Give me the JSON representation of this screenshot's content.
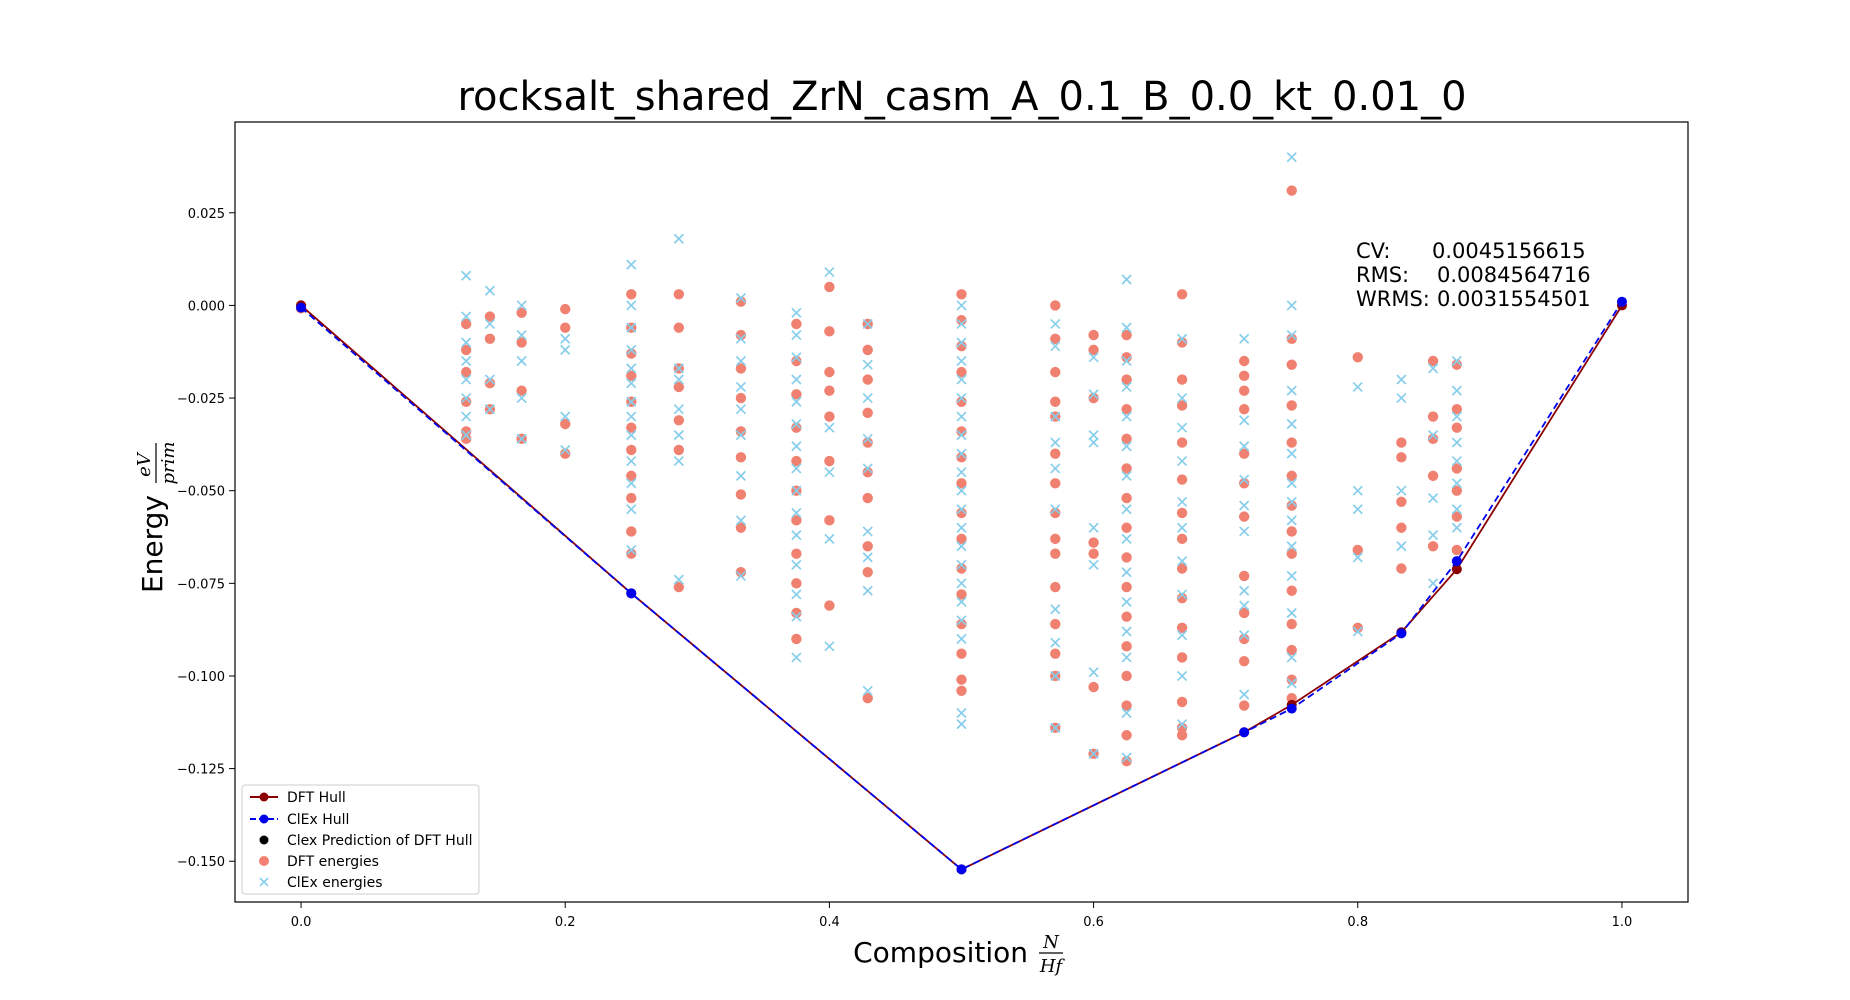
{
  "chart_data": {
    "type": "scatter",
    "title": "rocksalt_shared_ZrN_casm_A_0.1_B_0.0_kt_0.01_0",
    "xlabel": "Composition",
    "xlabel_fraction": {
      "num": "N",
      "den": "Hf"
    },
    "ylabel": "Energy",
    "ylabel_fraction": {
      "num": "eV",
      "den": "prim"
    },
    "xlim": [
      -0.05,
      1.05
    ],
    "ylim": [
      -0.161,
      0.0495
    ],
    "x_ticks": [
      0.0,
      0.2,
      0.4,
      0.6,
      0.8,
      1.0
    ],
    "x_tick_labels": [
      "0.0",
      "0.2",
      "0.4",
      "0.6",
      "0.8",
      "1.0"
    ],
    "y_ticks": [
      0.025,
      0.0,
      -0.025,
      -0.05,
      -0.075,
      -0.1,
      -0.125,
      -0.15
    ],
    "y_tick_labels": [
      "0.025",
      "0.000",
      "−0.025",
      "−0.050",
      "−0.075",
      "−0.100",
      "−0.125",
      "−0.150"
    ],
    "grid": false,
    "legend_position": "lower-left",
    "stats": [
      {
        "label": "CV:",
        "value": "0.0045156615"
      },
      {
        "label": "RMS:",
        "value": "0.0084564716"
      },
      {
        "label": "WRMS:",
        "value": "0.0031554501"
      }
    ],
    "series": [
      {
        "name": "DFT Hull",
        "kind": "line",
        "color": "#8b0000",
        "marker": "circle",
        "dash": false,
        "x": [
          0.0,
          0.25,
          0.5,
          0.714,
          0.75,
          0.833,
          0.875,
          1.0
        ],
        "y": [
          0.0,
          -0.0777,
          -0.1522,
          -0.1152,
          -0.1078,
          -0.0882,
          -0.0712,
          0.0
        ]
      },
      {
        "name": "ClEx Hull",
        "kind": "line",
        "color": "#0000ee",
        "marker": "circle",
        "dash": true,
        "x": [
          0.0,
          0.25,
          0.5,
          0.714,
          0.75,
          0.833,
          0.875,
          1.0
        ],
        "y": [
          -0.0006,
          -0.0777,
          -0.1522,
          -0.1152,
          -0.1088,
          -0.0885,
          -0.069,
          0.001
        ]
      },
      {
        "name": "Clex Prediction of DFT Hull",
        "kind": "scatter",
        "color": "#000000",
        "marker": "circle",
        "x": [],
        "y": []
      },
      {
        "name": "DFT energies",
        "kind": "scatter",
        "color": "#f08070",
        "marker": "circle",
        "columns": [
          {
            "x": 0.0,
            "y": [
              0.0,
              -0.0008
            ]
          },
          {
            "x": 0.125,
            "y": [
              -0.005,
              -0.012,
              -0.018,
              -0.026,
              -0.034,
              -0.036
            ]
          },
          {
            "x": 0.143,
            "y": [
              -0.003,
              -0.009,
              -0.021,
              -0.028
            ]
          },
          {
            "x": 0.167,
            "y": [
              -0.002,
              -0.01,
              -0.023,
              -0.036
            ]
          },
          {
            "x": 0.2,
            "y": [
              -0.001,
              -0.006,
              -0.032,
              -0.04
            ]
          },
          {
            "x": 0.25,
            "y": [
              0.003,
              -0.006,
              -0.013,
              -0.019,
              -0.026,
              -0.033,
              -0.039,
              -0.046,
              -0.052,
              -0.061,
              -0.067
            ]
          },
          {
            "x": 0.286,
            "y": [
              0.003,
              -0.006,
              -0.017,
              -0.022,
              -0.031,
              -0.039,
              -0.076
            ]
          },
          {
            "x": 0.333,
            "y": [
              0.001,
              -0.008,
              -0.017,
              -0.025,
              -0.034,
              -0.041,
              -0.051,
              -0.06,
              -0.072
            ]
          },
          {
            "x": 0.375,
            "y": [
              -0.005,
              -0.015,
              -0.024,
              -0.033,
              -0.042,
              -0.05,
              -0.058,
              -0.067,
              -0.075,
              -0.083,
              -0.09
            ]
          },
          {
            "x": 0.4,
            "y": [
              0.005,
              -0.007,
              -0.018,
              -0.023,
              -0.03,
              -0.042,
              -0.058,
              -0.081
            ]
          },
          {
            "x": 0.429,
            "y": [
              -0.005,
              -0.012,
              -0.02,
              -0.029,
              -0.037,
              -0.045,
              -0.052,
              -0.065,
              -0.072,
              -0.106
            ]
          },
          {
            "x": 0.5,
            "y": [
              0.003,
              -0.004,
              -0.011,
              -0.018,
              -0.026,
              -0.034,
              -0.041,
              -0.048,
              -0.056,
              -0.063,
              -0.071,
              -0.078,
              -0.086,
              -0.094,
              -0.101,
              -0.104
            ]
          },
          {
            "x": 0.571,
            "y": [
              0.0,
              -0.009,
              -0.018,
              -0.026,
              -0.03,
              -0.04,
              -0.048,
              -0.056,
              -0.063,
              -0.067,
              -0.076,
              -0.086,
              -0.094,
              -0.1,
              -0.114
            ]
          },
          {
            "x": 0.6,
            "y": [
              -0.008,
              -0.012,
              -0.025,
              -0.064,
              -0.067,
              -0.103,
              -0.121
            ]
          },
          {
            "x": 0.625,
            "y": [
              -0.008,
              -0.014,
              -0.02,
              -0.028,
              -0.036,
              -0.044,
              -0.052,
              -0.06,
              -0.068,
              -0.076,
              -0.084,
              -0.092,
              -0.1,
              -0.108,
              -0.116,
              -0.123
            ]
          },
          {
            "x": 0.667,
            "y": [
              0.003,
              -0.01,
              -0.02,
              -0.027,
              -0.037,
              -0.047,
              -0.056,
              -0.063,
              -0.071,
              -0.079,
              -0.087,
              -0.095,
              -0.107,
              -0.114,
              -0.116
            ]
          },
          {
            "x": 0.714,
            "y": [
              -0.015,
              -0.019,
              -0.023,
              -0.028,
              -0.04,
              -0.048,
              -0.057,
              -0.073,
              -0.083,
              -0.09,
              -0.096,
              -0.108
            ]
          },
          {
            "x": 0.75,
            "y": [
              0.031,
              -0.009,
              -0.016,
              -0.027,
              -0.037,
              -0.046,
              -0.054,
              -0.061,
              -0.067,
              -0.077,
              -0.086,
              -0.093,
              -0.101,
              -0.106
            ]
          },
          {
            "x": 0.8,
            "y": [
              -0.014,
              -0.066,
              -0.087
            ]
          },
          {
            "x": 0.833,
            "y": [
              -0.037,
              -0.041,
              -0.053,
              -0.06,
              -0.071
            ]
          },
          {
            "x": 0.857,
            "y": [
              -0.015,
              -0.03,
              -0.036,
              -0.046,
              -0.065
            ]
          },
          {
            "x": 0.875,
            "y": [
              -0.016,
              -0.028,
              -0.033,
              -0.044,
              -0.05,
              -0.057,
              -0.066
            ]
          }
        ]
      },
      {
        "name": "ClEx energies",
        "kind": "scatter",
        "color": "#87ceeb",
        "marker": "x",
        "columns": [
          {
            "x": 0.125,
            "y": [
              0.008,
              -0.003,
              -0.01,
              -0.015,
              -0.02,
              -0.025,
              -0.03,
              -0.035
            ]
          },
          {
            "x": 0.143,
            "y": [
              0.004,
              -0.005,
              -0.02,
              -0.028
            ]
          },
          {
            "x": 0.167,
            "y": [
              0.0,
              -0.008,
              -0.015,
              -0.025,
              -0.036
            ]
          },
          {
            "x": 0.2,
            "y": [
              -0.009,
              -0.012,
              -0.03,
              -0.039
            ]
          },
          {
            "x": 0.25,
            "y": [
              0.011,
              0.0,
              -0.006,
              -0.012,
              -0.017,
              -0.021,
              -0.026,
              -0.03,
              -0.035,
              -0.042,
              -0.048,
              -0.055,
              -0.066
            ]
          },
          {
            "x": 0.286,
            "y": [
              0.018,
              -0.017,
              -0.02,
              -0.028,
              -0.035,
              -0.042,
              -0.074
            ]
          },
          {
            "x": 0.333,
            "y": [
              0.002,
              -0.009,
              -0.015,
              -0.022,
              -0.028,
              -0.035,
              -0.046,
              -0.058,
              -0.073
            ]
          },
          {
            "x": 0.375,
            "y": [
              -0.002,
              -0.008,
              -0.014,
              -0.02,
              -0.026,
              -0.032,
              -0.038,
              -0.044,
              -0.05,
              -0.056,
              -0.062,
              -0.07,
              -0.078,
              -0.084,
              -0.095
            ]
          },
          {
            "x": 0.4,
            "y": [
              0.009,
              -0.033,
              -0.045,
              -0.063,
              -0.092
            ]
          },
          {
            "x": 0.429,
            "y": [
              -0.005,
              -0.016,
              -0.025,
              -0.036,
              -0.044,
              -0.061,
              -0.068,
              -0.077,
              -0.104
            ]
          },
          {
            "x": 0.5,
            "y": [
              0.0,
              -0.005,
              -0.01,
              -0.015,
              -0.02,
              -0.025,
              -0.03,
              -0.035,
              -0.04,
              -0.045,
              -0.05,
              -0.055,
              -0.06,
              -0.065,
              -0.07,
              -0.075,
              -0.08,
              -0.085,
              -0.09,
              -0.11,
              -0.113
            ]
          },
          {
            "x": 0.571,
            "y": [
              -0.005,
              -0.011,
              -0.03,
              -0.037,
              -0.044,
              -0.055,
              -0.082,
              -0.091,
              -0.1,
              -0.114
            ]
          },
          {
            "x": 0.6,
            "y": [
              -0.014,
              -0.024,
              -0.035,
              -0.037,
              -0.06,
              -0.07,
              -0.099,
              -0.121
            ]
          },
          {
            "x": 0.625,
            "y": [
              0.007,
              -0.006,
              -0.015,
              -0.022,
              -0.03,
              -0.038,
              -0.046,
              -0.055,
              -0.063,
              -0.072,
              -0.08,
              -0.088,
              -0.095,
              -0.11,
              -0.122
            ]
          },
          {
            "x": 0.667,
            "y": [
              -0.009,
              -0.025,
              -0.033,
              -0.042,
              -0.053,
              -0.06,
              -0.069,
              -0.078,
              -0.089,
              -0.1,
              -0.113
            ]
          },
          {
            "x": 0.714,
            "y": [
              -0.009,
              -0.031,
              -0.038,
              -0.047,
              -0.054,
              -0.061,
              -0.077,
              -0.081,
              -0.089,
              -0.105
            ]
          },
          {
            "x": 0.75,
            "y": [
              0.04,
              0.0,
              -0.008,
              -0.023,
              -0.032,
              -0.04,
              -0.048,
              -0.053,
              -0.058,
              -0.065,
              -0.073,
              -0.083,
              -0.095,
              -0.102
            ]
          },
          {
            "x": 0.8,
            "y": [
              -0.022,
              -0.05,
              -0.055,
              -0.068,
              -0.088
            ]
          },
          {
            "x": 0.833,
            "y": [
              -0.02,
              -0.025,
              -0.05,
              -0.065
            ]
          },
          {
            "x": 0.857,
            "y": [
              -0.017,
              -0.035,
              -0.052,
              -0.062,
              -0.075
            ]
          },
          {
            "x": 0.875,
            "y": [
              -0.015,
              -0.023,
              -0.03,
              -0.037,
              -0.042,
              -0.048,
              -0.055,
              -0.06,
              -0.07
            ]
          }
        ]
      }
    ]
  }
}
